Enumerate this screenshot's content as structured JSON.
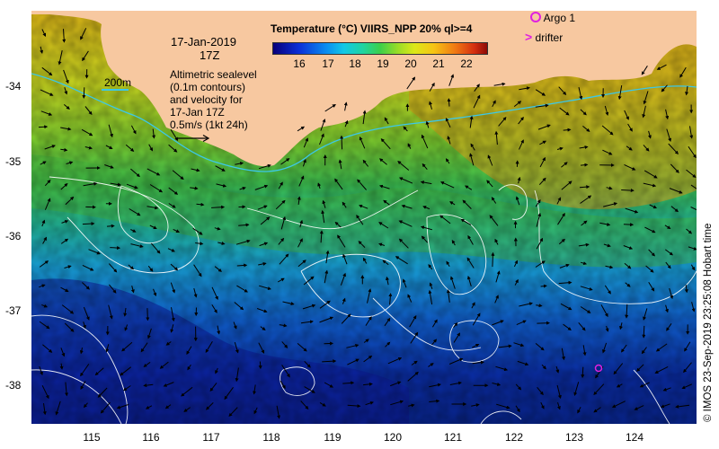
{
  "map": {
    "date": "17-Jan-2019",
    "time": "17Z",
    "contour_legend_label": "200m",
    "description_lines": [
      "Altimetric sealevel",
      "(0.1m contours)",
      "and velocity for",
      "17-Jan 17Z",
      "0.5m/s (1kt 24h)"
    ],
    "colorbar": {
      "title": "Temperature (°C) VIIRS_NPP 20% ql>=4",
      "ticks": [
        "16",
        "17",
        "18",
        "19",
        "20",
        "21",
        "22"
      ]
    },
    "legend": {
      "argo_label": "Argo 1",
      "drifter_label": "drifter"
    },
    "y_axis": {
      "labels": [
        "-34",
        "-35",
        "-36",
        "-37",
        "-38"
      ]
    },
    "x_axis": {
      "labels": [
        "115",
        "116",
        "117",
        "118",
        "119",
        "120",
        "121",
        "122",
        "123",
        "124"
      ]
    },
    "credit": "© IMOS 23-Sep-2019 23:25:08 Hobart time",
    "colors": {
      "land": "#f7c8a0",
      "isobath": "#3cc8e8",
      "contour": "#ffffff",
      "argo_marker": "#e020e0"
    }
  }
}
